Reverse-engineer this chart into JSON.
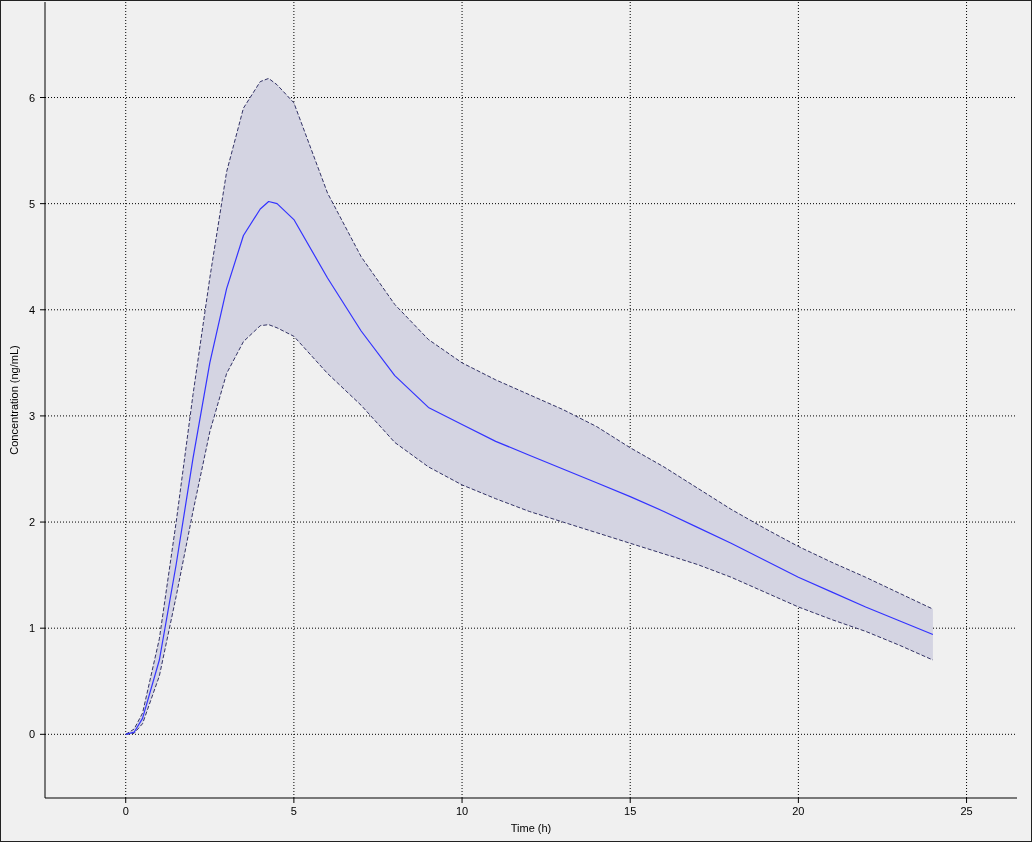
{
  "chart_data": {
    "type": "line",
    "xlabel": "Time (h)",
    "ylabel": "Concentration (ng/mL)",
    "xlim": [
      -2.4,
      26.5
    ],
    "ylim": [
      -0.6,
      6.9
    ],
    "xticks": [
      0,
      5,
      10,
      15,
      20,
      25
    ],
    "yticks": [
      0,
      1,
      2,
      3,
      4,
      5,
      6
    ],
    "grid": true,
    "x": [
      0,
      0.25,
      0.5,
      1,
      1.5,
      2,
      2.5,
      3,
      3.5,
      4,
      4.25,
      4.5,
      5,
      6,
      7,
      8,
      9,
      10,
      11,
      12,
      13,
      14,
      15,
      16,
      17,
      18,
      19,
      20,
      21,
      22,
      23,
      24
    ],
    "series": [
      {
        "color": "#3333ff",
        "values": [
          0,
          0.02,
          0.15,
          0.7,
          1.6,
          2.6,
          3.5,
          4.2,
          4.7,
          4.95,
          5.02,
          5.0,
          4.85,
          4.3,
          3.8,
          3.38,
          3.08,
          2.92,
          2.76,
          2.63,
          2.5,
          2.37,
          2.24,
          2.1,
          1.95,
          1.8,
          1.64,
          1.48,
          1.34,
          1.2,
          1.07,
          0.94
        ],
        "upper": [
          0,
          0.05,
          0.2,
          0.9,
          2.0,
          3.2,
          4.3,
          5.3,
          5.9,
          6.15,
          6.18,
          6.12,
          5.95,
          5.1,
          4.5,
          4.05,
          3.72,
          3.5,
          3.34,
          3.2,
          3.06,
          2.9,
          2.7,
          2.52,
          2.32,
          2.12,
          1.94,
          1.77,
          1.62,
          1.48,
          1.33,
          1.18
        ],
        "lower": [
          0,
          0.01,
          0.1,
          0.55,
          1.3,
          2.1,
          2.85,
          3.4,
          3.7,
          3.85,
          3.86,
          3.83,
          3.75,
          3.4,
          3.1,
          2.75,
          2.52,
          2.35,
          2.22,
          2.1,
          2.0,
          1.9,
          1.8,
          1.7,
          1.6,
          1.48,
          1.34,
          1.2,
          1.08,
          0.97,
          0.84,
          0.7
        ]
      },
      {
        "color": "#333366",
        "line_style": "dashed",
        "values": [
          0,
          0.05,
          0.2,
          0.9,
          2.0,
          3.2,
          4.3,
          5.3,
          5.9,
          6.15,
          6.18,
          6.12,
          5.95,
          5.1,
          4.5,
          4.05,
          3.72,
          3.5,
          3.34,
          3.2,
          3.06,
          2.9,
          2.7,
          2.52,
          2.32,
          2.12,
          1.94,
          1.77,
          1.62,
          1.48,
          1.33,
          1.18
        ]
      },
      {
        "color": "#333366",
        "line_style": "dashed",
        "values": [
          0,
          0.01,
          0.1,
          0.55,
          1.3,
          2.1,
          2.85,
          3.4,
          3.7,
          3.85,
          3.86,
          3.83,
          3.75,
          3.4,
          3.1,
          2.75,
          2.52,
          2.35,
          2.22,
          2.1,
          2.0,
          1.9,
          1.8,
          1.7,
          1.6,
          1.48,
          1.34,
          1.2,
          1.08,
          0.97,
          0.84,
          0.7
        ]
      }
    ]
  }
}
